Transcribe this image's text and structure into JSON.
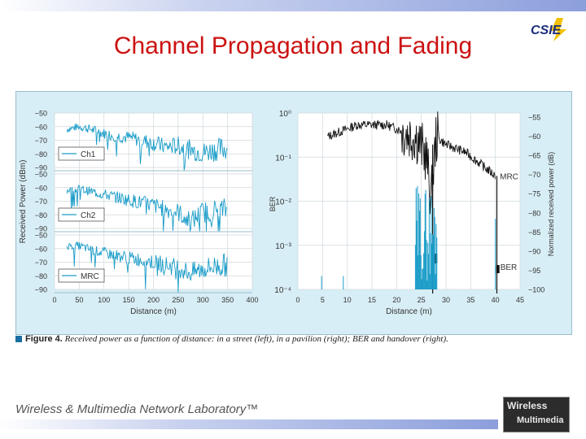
{
  "title": "Channel Propagation and Fading",
  "logo_cse": "CSIE",
  "footer": "Wireless & Multimedia Network Laboratory™",
  "logo_wm": {
    "line1": "Wireless",
    "line2": "Multimedia"
  },
  "caption": {
    "label": "Figure 4.",
    "text": " Received power as a function of distance: in a street (left), in a pavilion (right); BER and handover (right)."
  },
  "chart_data": [
    {
      "type": "line",
      "title": "",
      "xlabel": "Distance (m)",
      "ylabel": "Received Power (dBm)",
      "xlim": [
        0,
        400
      ],
      "xticks": [
        "0",
        "50",
        "100",
        "150",
        "200",
        "250",
        "300",
        "350",
        "400"
      ],
      "panels": [
        {
          "legend": "Ch1",
          "yticks": [
            "−50",
            "−60",
            "−70",
            "−80",
            "−90"
          ],
          "ylim": [
            -90,
            -50
          ]
        },
        {
          "legend": "Ch2",
          "yticks": [
            "−50",
            "−60",
            "−70",
            "−80",
            "−90"
          ],
          "ylim": [
            -90,
            -50
          ]
        },
        {
          "legend": "MRC",
          "yticks": [
            "−50",
            "−60",
            "−70",
            "−80",
            "−90"
          ],
          "ylim": [
            -90,
            -50
          ]
        }
      ],
      "series": [
        {
          "name": "Ch1",
          "x": [
            25,
            50,
            75,
            100,
            125,
            150,
            175,
            200,
            225,
            250,
            275,
            300,
            325,
            350
          ],
          "y": [
            -62,
            -60,
            -62,
            -65,
            -67,
            -68,
            -70,
            -72,
            -75,
            -74,
            -77,
            -79,
            -77,
            -76
          ]
        },
        {
          "name": "Ch2",
          "x": [
            25,
            50,
            75,
            100,
            125,
            150,
            175,
            200,
            225,
            250,
            275,
            300,
            325,
            350
          ],
          "y": [
            -62,
            -61,
            -63,
            -65,
            -67,
            -69,
            -71,
            -73,
            -76,
            -78,
            -85,
            -78,
            -77,
            -76
          ]
        },
        {
          "name": "MRC",
          "x": [
            25,
            50,
            75,
            100,
            125,
            150,
            175,
            200,
            225,
            250,
            275,
            300,
            325,
            350
          ],
          "y": [
            -58,
            -58,
            -61,
            -63,
            -65,
            -67,
            -68,
            -70,
            -72,
            -74,
            -78,
            -75,
            -73,
            -72
          ]
        }
      ],
      "line_color": "#1a9cc8"
    },
    {
      "type": "line",
      "title": "",
      "xlabel": "Distance (m)",
      "ylabel_left": "BER",
      "ylabel_right": "Normalized received power (dB)",
      "xlim": [
        0,
        45
      ],
      "xticks": [
        "0",
        "5",
        "10",
        "15",
        "20",
        "25",
        "30",
        "35",
        "40",
        "45"
      ],
      "yticks_left": [
        "10⁰",
        "10⁻¹",
        "10⁻²",
        "10⁻³",
        "10⁻⁴"
      ],
      "yticks_right": [
        "−55",
        "−60",
        "−65",
        "−70",
        "−75",
        "−80",
        "−85",
        "−90",
        "−95",
        "−100"
      ],
      "ylim_right": [
        -100,
        -55
      ],
      "series": [
        {
          "name": "MRC",
          "axis": "right",
          "color": "#111111",
          "x": [
            6,
            8,
            10,
            12,
            14,
            16,
            18,
            20,
            22,
            24,
            26,
            27,
            28,
            30,
            32,
            34,
            36,
            38,
            39,
            40
          ],
          "y": [
            -60,
            -59,
            -58,
            -57,
            -57,
            -57,
            -57,
            -58,
            -59,
            -60,
            -65,
            -76,
            -60,
            -62,
            -63,
            -64,
            -66,
            -68,
            -69,
            -70
          ]
        },
        {
          "name": "BER",
          "axis": "left",
          "color": "#1a9cc8",
          "x": [
            4,
            9,
            24,
            25,
            26,
            27,
            28,
            40
          ],
          "y": [
            0.0001,
            0.0001,
            0.001,
            0.01,
            0.005,
            0.008,
            0.002,
            0.003
          ]
        }
      ],
      "annotations": [
        "MRC",
        "BER"
      ]
    }
  ]
}
